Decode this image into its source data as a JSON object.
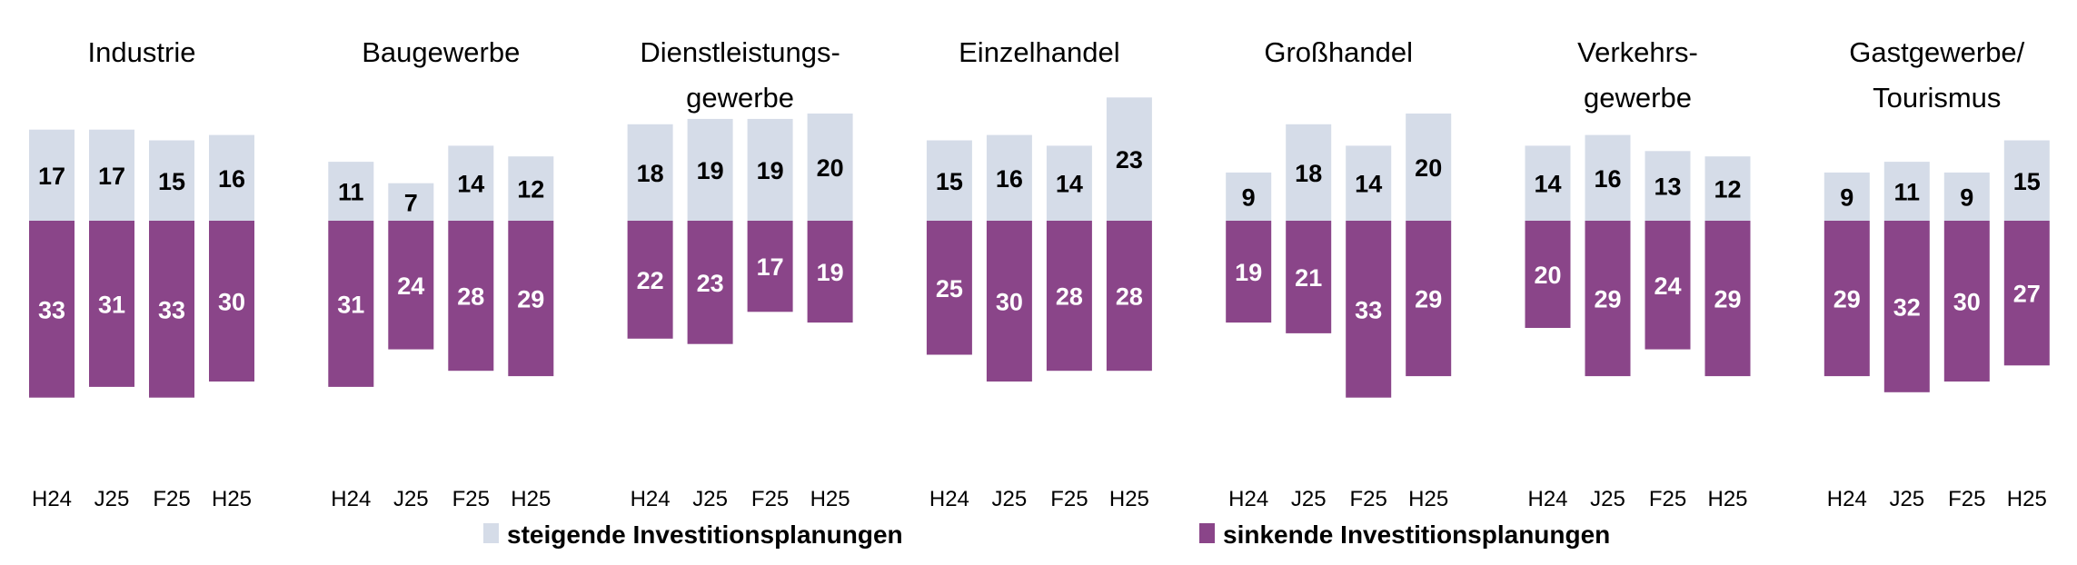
{
  "chart_data": {
    "type": "bar",
    "stacked": "diverging",
    "legend_position": "bottom",
    "grid": false,
    "colors": {
      "steigend": "#d5dce8",
      "sinkend": "#8a4589"
    },
    "categories": [
      "H24",
      "J25",
      "F25",
      "H25"
    ],
    "series": [
      {
        "name": "steigende Investitionsplanungen",
        "direction": "up"
      },
      {
        "name": "sinkende Investitionsplanungen",
        "direction": "down"
      }
    ],
    "panels": [
      {
        "title": [
          "Industrie"
        ],
        "steigend": [
          17,
          17,
          15,
          16
        ],
        "sinkend": [
          33,
          31,
          33,
          30
        ]
      },
      {
        "title": [
          "Baugewerbe"
        ],
        "steigend": [
          11,
          7,
          14,
          12
        ],
        "sinkend": [
          31,
          24,
          28,
          29
        ]
      },
      {
        "title": [
          "Dienstleistungs-",
          "gewerbe"
        ],
        "steigend": [
          18,
          19,
          19,
          20
        ],
        "sinkend": [
          22,
          23,
          17,
          19
        ]
      },
      {
        "title": [
          "Einzelhandel"
        ],
        "steigend": [
          15,
          16,
          14,
          23
        ],
        "sinkend": [
          25,
          30,
          28,
          28
        ]
      },
      {
        "title": [
          "Großhandel"
        ],
        "steigend": [
          9,
          18,
          14,
          20
        ],
        "sinkend": [
          19,
          21,
          33,
          29
        ]
      },
      {
        "title": [
          "Verkehrs-",
          "gewerbe"
        ],
        "steigend": [
          14,
          16,
          13,
          12
        ],
        "sinkend": [
          20,
          29,
          24,
          29
        ]
      },
      {
        "title": [
          "Gastgewerbe/",
          "Tourismus"
        ],
        "steigend": [
          9,
          11,
          9,
          15
        ],
        "sinkend": [
          29,
          32,
          30,
          27
        ]
      }
    ]
  }
}
